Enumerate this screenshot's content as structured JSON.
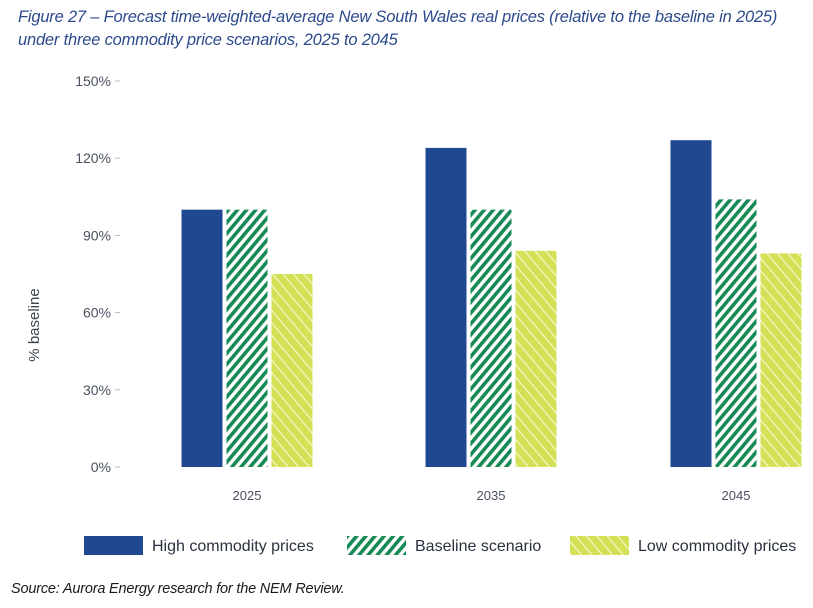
{
  "figure": {
    "title": "Figure 27 – Forecast time-weighted-average New South Wales real prices (relative to the baseline in 2025) under three commodity price scenarios, 2025 to 2045",
    "source": "Source: Aurora Energy research for the NEM Review."
  },
  "chart_data": {
    "type": "bar",
    "title": "Figure 27 – Forecast time-weighted-average New South Wales real prices (relative to the baseline in 2025) under three commodity price scenarios, 2025 to 2045",
    "xlabel": "",
    "ylabel": "% baseline",
    "categories": [
      "2025",
      "2035",
      "2045"
    ],
    "ylim": [
      0,
      150
    ],
    "yticks": [
      0,
      30,
      60,
      90,
      120,
      150
    ],
    "ytick_labels": [
      "0%",
      "30%",
      "60%",
      "90%",
      "120%",
      "150%"
    ],
    "grid": false,
    "legend_position": "bottom",
    "series": [
      {
        "name": "High commodity prices",
        "color": "#1f4891",
        "pattern": "solid",
        "values": [
          100,
          124,
          127
        ]
      },
      {
        "name": "Baseline scenario",
        "color": "#158a55",
        "pattern": "diagonal-stripes",
        "values": [
          100,
          100,
          104
        ]
      },
      {
        "name": "Low commodity prices",
        "color": "#d4e157",
        "pattern": "light-diagonal-hatch",
        "values": [
          75,
          84,
          83
        ]
      }
    ]
  }
}
